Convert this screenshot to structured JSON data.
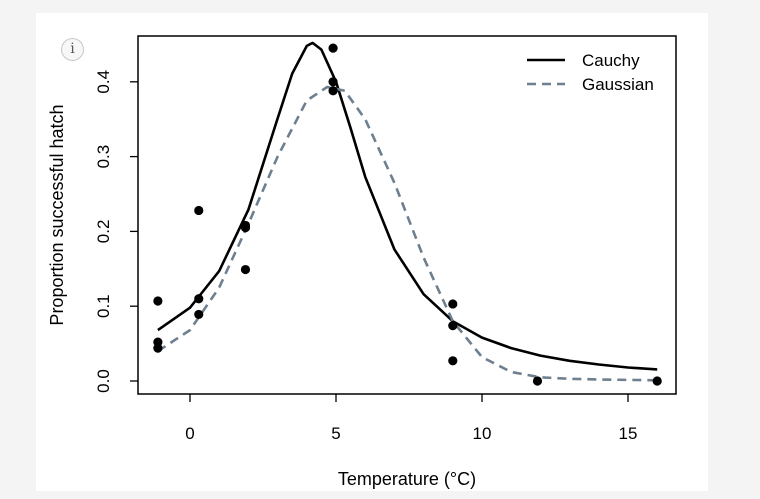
{
  "info_icon": "i",
  "chart_data": {
    "type": "scatter",
    "title": "",
    "xlabel": "Temperature (°C)",
    "ylabel": "Proportion successful hatch",
    "xlim": [
      -1.8,
      16.8
    ],
    "ylim": [
      -0.017,
      0.463
    ],
    "xticks": [
      0,
      5,
      10,
      15
    ],
    "xtick_labels": [
      "0",
      "5",
      "10",
      "15"
    ],
    "yticks": [
      0.0,
      0.1,
      0.2,
      0.3,
      0.4
    ],
    "ytick_labels": [
      "0.0",
      "0.1",
      "0.2",
      "0.3",
      "0.4"
    ],
    "grid": false,
    "legend_position": "top-right",
    "points": {
      "x": [
        -1.1,
        -1.1,
        -1.1,
        0.3,
        0.3,
        0.3,
        1.9,
        1.9,
        1.9,
        4.9,
        4.9,
        4.9,
        9.0,
        9.0,
        9.0,
        11.9,
        16.0
      ],
      "y": [
        0.107,
        0.052,
        0.044,
        0.228,
        0.11,
        0.089,
        0.208,
        0.205,
        0.149,
        0.445,
        0.4,
        0.388,
        0.103,
        0.074,
        0.027,
        0.0,
        0.0
      ]
    },
    "series": [
      {
        "name": "Cauchy",
        "color": "#000000",
        "style": "solid",
        "x": [
          -1.1,
          0,
          1,
          2,
          3,
          3.5,
          4,
          4.2,
          4.5,
          5,
          5.5,
          6,
          7,
          8,
          9,
          10,
          11,
          12,
          13,
          14,
          15,
          16
        ],
        "y": [
          0.068,
          0.098,
          0.147,
          0.229,
          0.351,
          0.411,
          0.448,
          0.452,
          0.443,
          0.4,
          0.338,
          0.273,
          0.176,
          0.116,
          0.08,
          0.058,
          0.044,
          0.034,
          0.027,
          0.022,
          0.018,
          0.0155
        ]
      },
      {
        "name": "Gaussian",
        "color": "#6e7f8f",
        "style": "dashed",
        "x": [
          -1.1,
          0,
          1,
          2,
          3,
          4,
          4.7,
          5.3,
          6,
          7,
          8,
          9,
          10,
          11,
          12,
          13,
          14,
          16
        ],
        "y": [
          0.04,
          0.068,
          0.125,
          0.21,
          0.3,
          0.375,
          0.393,
          0.388,
          0.35,
          0.265,
          0.165,
          0.08,
          0.032,
          0.012,
          0.005,
          0.003,
          0.002,
          0.001
        ]
      }
    ]
  }
}
